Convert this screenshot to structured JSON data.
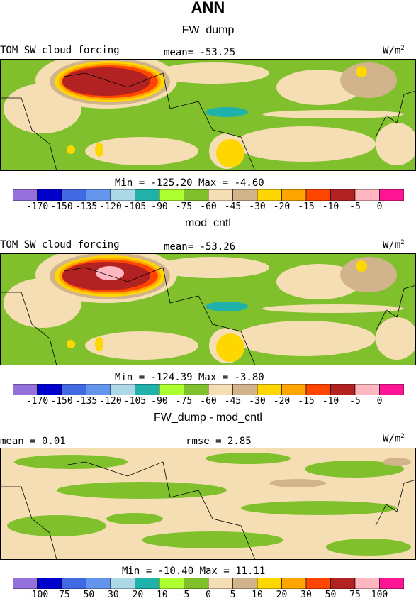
{
  "header": {
    "title": "ANN"
  },
  "panels": [
    {
      "subtitle": "FW_dump",
      "left_label": "TOM SW cloud forcing",
      "mid_label": "mean=  -53.25",
      "units_base": "W/m",
      "units_exp": "2",
      "minmax": "Min = -125.20 Max =  -4.60",
      "levels": [
        "-170",
        "-150",
        "-135",
        "-120",
        "-105",
        "-90",
        "-75",
        "-60",
        "-45",
        "-30",
        "-20",
        "-15",
        "-10",
        "-5",
        "0"
      ],
      "colors": [
        "#9370db",
        "#0000cd",
        "#4169e1",
        "#6495ed",
        "#add8e6",
        "#20b2aa",
        "#adff2f",
        "#7fc02c",
        "#f5deb3",
        "#d2b48c",
        "#ffd700",
        "#ffa500",
        "#ff4500",
        "#b22222",
        "#ffb6c1",
        "#ff1493"
      ]
    },
    {
      "subtitle": "mod_cntl",
      "left_label": "TOM SW cloud forcing",
      "mid_label": "mean=  -53.26",
      "units_base": "W/m",
      "units_exp": "2",
      "minmax": "Min = -124.39 Max =  -3.80",
      "levels": [
        "-170",
        "-150",
        "-135",
        "-120",
        "-105",
        "-90",
        "-75",
        "-60",
        "-45",
        "-30",
        "-20",
        "-15",
        "-10",
        "-5",
        "0"
      ],
      "colors": [
        "#9370db",
        "#0000cd",
        "#4169e1",
        "#6495ed",
        "#add8e6",
        "#20b2aa",
        "#adff2f",
        "#7fc02c",
        "#f5deb3",
        "#d2b48c",
        "#ffd700",
        "#ffa500",
        "#ff4500",
        "#b22222",
        "#ffb6c1",
        "#ff1493"
      ]
    },
    {
      "subtitle": "FW_dump - mod_cntl",
      "left_label": "mean =   0.01",
      "mid_label": "rmse =   2.85",
      "units_base": "W/m",
      "units_exp": "2",
      "minmax": "Min = -10.40 Max =  11.11",
      "levels": [
        "-100",
        "-75",
        "-50",
        "-30",
        "-20",
        "-10",
        "-5",
        "0",
        "5",
        "10",
        "20",
        "30",
        "50",
        "75",
        "100"
      ],
      "colors": [
        "#9370db",
        "#0000cd",
        "#4169e1",
        "#6495ed",
        "#add8e6",
        "#20b2aa",
        "#adff2f",
        "#7fc02c",
        "#f5deb3",
        "#d2b48c",
        "#ffd700",
        "#ffa500",
        "#ff4500",
        "#b22222",
        "#ffb6c1",
        "#ff1493"
      ]
    }
  ],
  "chart_data": [
    {
      "type": "heatmap",
      "title": "FW_dump",
      "subtitle": "TOM SW cloud forcing",
      "units": "W/m2",
      "mean": -53.25,
      "min": -125.2,
      "max": -4.6,
      "levels": [
        -170,
        -150,
        -135,
        -120,
        -105,
        -90,
        -75,
        -60,
        -45,
        -30,
        -20,
        -15,
        -10,
        -5,
        0
      ]
    },
    {
      "type": "heatmap",
      "title": "mod_cntl",
      "subtitle": "TOM SW cloud forcing",
      "units": "W/m2",
      "mean": -53.26,
      "min": -124.39,
      "max": -3.8,
      "levels": [
        -170,
        -150,
        -135,
        -120,
        -105,
        -90,
        -75,
        -60,
        -45,
        -30,
        -20,
        -15,
        -10,
        -5,
        0
      ]
    },
    {
      "type": "heatmap",
      "title": "FW_dump - mod_cntl",
      "units": "W/m2",
      "mean": 0.01,
      "rmse": 2.85,
      "min": -10.4,
      "max": 11.11,
      "levels": [
        -100,
        -75,
        -50,
        -30,
        -20,
        -10,
        -5,
        0,
        5,
        10,
        20,
        30,
        50,
        75,
        100
      ]
    }
  ]
}
